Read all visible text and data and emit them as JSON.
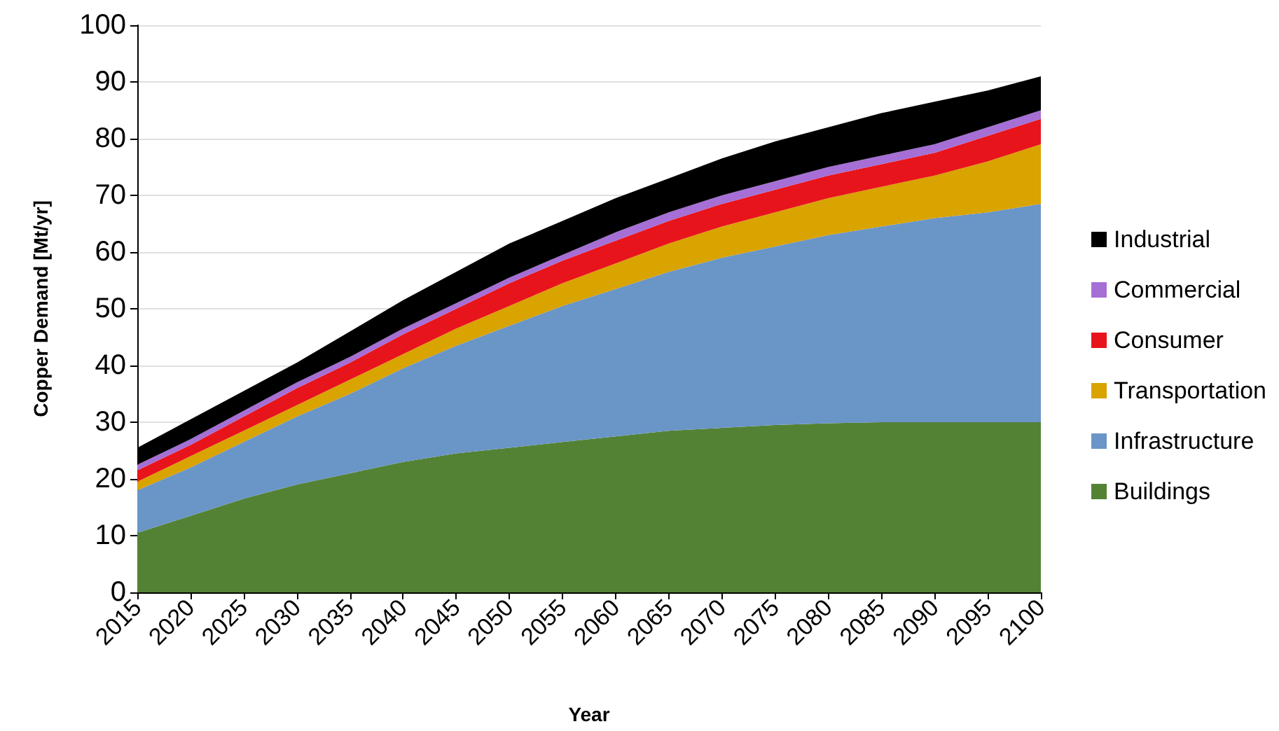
{
  "chart_data": {
    "type": "area",
    "stacked": true,
    "xlabel": "Year",
    "ylabel": "Copper Demand [Mt/yr]",
    "categories": [
      "2015",
      "2020",
      "2025",
      "2030",
      "2035",
      "2040",
      "2045",
      "2050",
      "2055",
      "2060",
      "2065",
      "2070",
      "2075",
      "2080",
      "2085",
      "2090",
      "2095",
      "2100"
    ],
    "ylim": [
      0,
      100
    ],
    "yticks": [
      0,
      10,
      20,
      30,
      40,
      50,
      60,
      70,
      80,
      90,
      100
    ],
    "grid": "y",
    "legend": "right",
    "series": [
      {
        "name": "Buildings",
        "color": "#548235",
        "values": [
          10.5,
          13.5,
          16.5,
          19,
          21,
          23,
          24.5,
          25.5,
          26.5,
          27.5,
          28.5,
          29,
          29.5,
          29.8,
          30,
          30,
          30,
          30
        ]
      },
      {
        "name": "Infrastructure",
        "color": "#6a95c7",
        "values": [
          7.5,
          8.5,
          10,
          12,
          14,
          16.5,
          19,
          21.5,
          24,
          26,
          28,
          30,
          31.5,
          33.2,
          34.5,
          36,
          37,
          38.5
        ]
      },
      {
        "name": "Transportation",
        "color": "#d9a300",
        "values": [
          1.5,
          2,
          2,
          2,
          2.5,
          2.5,
          3,
          3.5,
          4,
          4.5,
          5,
          5.5,
          6,
          6.5,
          7,
          7.5,
          9,
          10.5
        ]
      },
      {
        "name": "Consumer",
        "color": "#e8141b",
        "values": [
          2,
          2,
          2.5,
          3,
          3,
          3.5,
          3.5,
          4,
          4,
          4,
          4,
          4,
          4,
          4,
          4,
          4,
          4.5,
          4.5
        ]
      },
      {
        "name": "Commercial",
        "color": "#a56fd6",
        "values": [
          1,
          1,
          1,
          1,
          1,
          1,
          1,
          1,
          1,
          1.5,
          1.5,
          1.5,
          1.5,
          1.5,
          1.5,
          1.5,
          1.5,
          1.5
        ]
      },
      {
        "name": "Industrial",
        "color": "#000000",
        "values": [
          3,
          3.5,
          3.5,
          3.5,
          4.5,
          5,
          5.5,
          6,
          6,
          6,
          6,
          6.5,
          7,
          7,
          7.5,
          7.5,
          6.5,
          6
        ]
      }
    ]
  }
}
